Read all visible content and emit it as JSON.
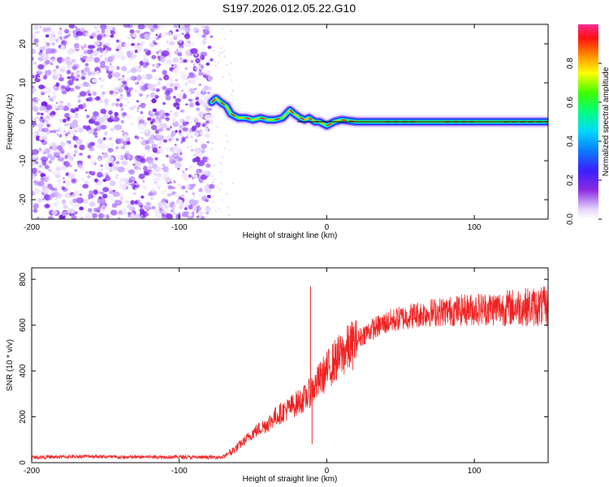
{
  "title": "S197.2026.012.05.22.G10",
  "chart_data": [
    {
      "type": "heatmap",
      "xlabel": "Height of straight line (km)",
      "ylabel": "Frequency (Hz)",
      "xlim": [
        -200,
        150
      ],
      "ylim": [
        -25,
        25
      ],
      "xticks": [
        -200,
        -100,
        0,
        100
      ],
      "yticks": [
        -20,
        -10,
        0,
        10,
        20
      ],
      "colorbar": {
        "label": "Normalized spectral amplitude",
        "range": [
          0,
          1
        ],
        "ticks": [
          0.0,
          0.2,
          0.4,
          0.6,
          0.8
        ],
        "tick_labels": [
          "0.0",
          "0.2",
          "0.4",
          "0.6",
          "0.8"
        ]
      },
      "noise_region_x": [
        -200,
        -78
      ],
      "ridge": {
        "x": [
          -78,
          -75,
          -72,
          -68,
          -65,
          -60,
          -55,
          -50,
          -45,
          -40,
          -35,
          -30,
          -25,
          -22,
          -18,
          -15,
          -12,
          -10,
          -8,
          -5,
          0,
          5,
          10,
          20,
          40,
          60,
          80,
          100,
          120,
          150
        ],
        "y": [
          5,
          6,
          5,
          4,
          2,
          1,
          1,
          0.5,
          1,
          0.5,
          0.5,
          1,
          3,
          2,
          1,
          0.5,
          1,
          0.5,
          0,
          0,
          -1,
          0,
          0.5,
          0,
          0,
          0,
          0,
          0,
          0,
          0
        ]
      }
    },
    {
      "type": "line",
      "xlabel": "Height of straight line (km)",
      "ylabel": "SNR (10 * v/v)",
      "xlim": [
        -200,
        150
      ],
      "ylim": [
        0,
        850
      ],
      "xticks": [
        -200,
        -100,
        0,
        100
      ],
      "yticks": [
        0,
        200,
        400,
        600,
        800
      ],
      "series": [
        {
          "color": "#ee2222",
          "x": [
            -200,
            -180,
            -160,
            -140,
            -120,
            -100,
            -90,
            -80,
            -70,
            -66,
            -62,
            -55,
            -50,
            -45,
            -40,
            -35,
            -30,
            -25,
            -20,
            -15,
            -12,
            -10,
            -8,
            -5,
            0,
            5,
            10,
            15,
            20,
            25,
            30,
            40,
            50,
            60,
            70,
            80,
            90,
            100,
            110,
            120,
            130,
            140,
            150
          ],
          "y": [
            20,
            22,
            25,
            20,
            22,
            22,
            20,
            20,
            22,
            40,
            60,
            100,
            130,
            150,
            170,
            200,
            220,
            240,
            260,
            280,
            300,
            320,
            330,
            360,
            400,
            440,
            470,
            500,
            530,
            560,
            580,
            610,
            630,
            645,
            655,
            660,
            665,
            670,
            672,
            675,
            680,
            680,
            680
          ]
        }
      ],
      "spikes": [
        {
          "x": -11,
          "y": 770
        },
        {
          "x": -10,
          "y": 80
        }
      ]
    }
  ]
}
